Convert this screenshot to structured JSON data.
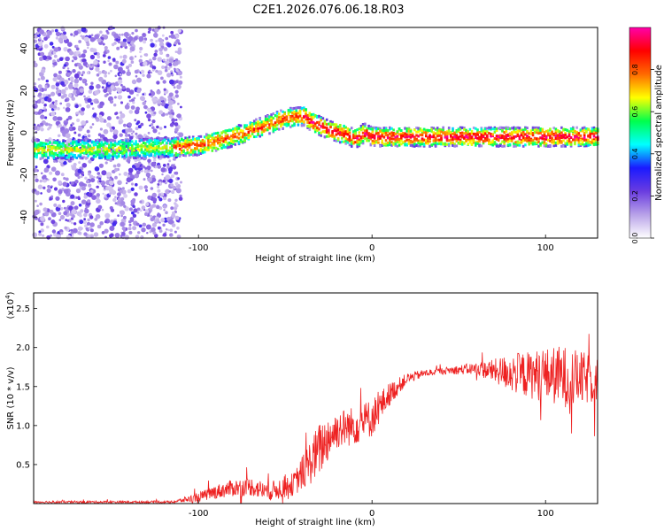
{
  "title": "C2E1.2026.076.06.18.R03",
  "chart_data": [
    {
      "type": "heatmap",
      "name": "spectrogram",
      "xlabel": "Height of straight line (km)",
      "ylabel": "Frequency (Hz)",
      "xlim": [
        -195,
        130
      ],
      "ylim": [
        -50,
        50
      ],
      "xticks": [
        -100,
        0,
        100
      ],
      "yticks": [
        -40,
        -20,
        0,
        20,
        40
      ],
      "colorbar": {
        "label": "Normalized spectral amplitude",
        "range": [
          0,
          1
        ],
        "ticks": [
          0,
          0.2,
          0.4,
          0.6,
          0.8
        ],
        "colors": [
          "#ffffff",
          "#b8a2e8",
          "#6a3ce0",
          "#1a1aff",
          "#00ffff",
          "#00ff4c",
          "#ffff00",
          "#ff6a00",
          "#ff0000",
          "#ff00aa"
        ]
      },
      "ridge": {
        "x": [
          -195,
          -150,
          -115,
          -100,
          -85,
          -70,
          -60,
          -50,
          -40,
          -35,
          -25,
          -15,
          -10,
          -5,
          0,
          20,
          40,
          60,
          80,
          100,
          130
        ],
        "y": [
          -8,
          -8,
          -7,
          -6,
          -3,
          1,
          4,
          7,
          8,
          5,
          1,
          -1,
          -3,
          0,
          -2,
          -2,
          -2,
          -2,
          -2,
          -2,
          -2
        ]
      },
      "noise_region_x": [
        -195,
        -115
      ]
    },
    {
      "type": "line",
      "name": "snr",
      "xlabel": "Height of straight line (km)",
      "ylabel": "SNR (10 * v/v)",
      "multiplier": "(x10",
      "multiplier_exp": "4",
      "multiplier_close": ")",
      "xlim": [
        -195,
        130
      ],
      "ylim": [
        0,
        27000
      ],
      "xticks": [
        -100,
        0,
        100
      ],
      "yticks": [
        5000,
        10000,
        15000,
        20000,
        25000
      ],
      "ytick_labels": [
        "0.5",
        "1.0",
        "1.5",
        "2.0",
        "2.5"
      ],
      "color": "#ee2222",
      "envelope": {
        "x": [
          -195,
          -115,
          -100,
          -90,
          -80,
          -70,
          -60,
          -45,
          -35,
          -30,
          -25,
          -20,
          -10,
          0,
          10,
          20,
          30,
          40,
          60,
          70,
          80,
          90,
          100,
          110,
          120,
          130
        ],
        "mean": [
          200,
          200,
          800,
          1500,
          2000,
          2200,
          1500,
          2500,
          5500,
          7000,
          8500,
          9500,
          10000,
          11000,
          14000,
          16000,
          16700,
          17000,
          17300,
          17000,
          16800,
          16500,
          16500,
          16300,
          16000,
          16000
        ],
        "spread": [
          150,
          150,
          600,
          900,
          1100,
          1200,
          1200,
          1500,
          3000,
          3500,
          3000,
          2500,
          2500,
          2500,
          1500,
          700,
          500,
          400,
          800,
          1500,
          2500,
          3000,
          3500,
          4000,
          3500,
          3000
        ]
      }
    }
  ]
}
